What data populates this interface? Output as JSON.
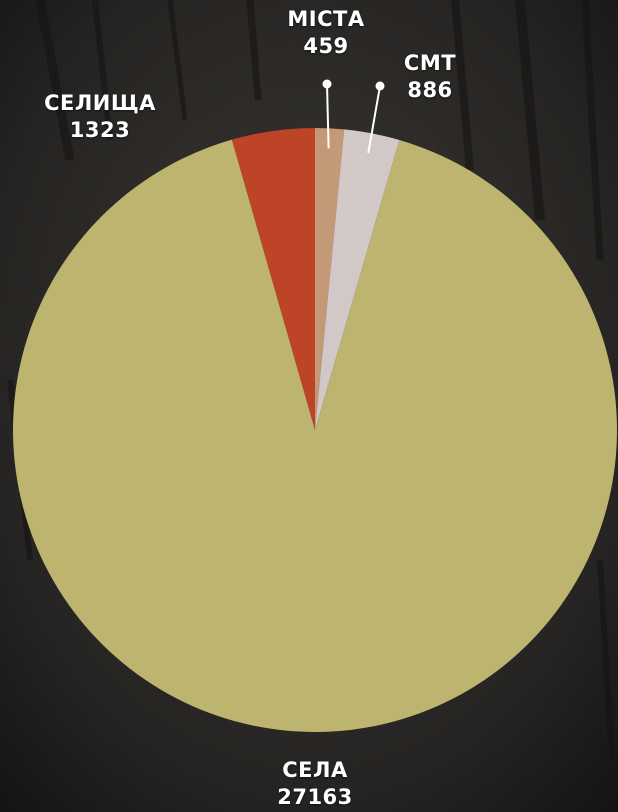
{
  "chart_data": {
    "type": "pie",
    "slices": [
      {
        "label": "МІСТА",
        "value": 459,
        "color": "#c49a76"
      },
      {
        "label": "СМТ",
        "value": 886,
        "color": "#d2c8c8"
      },
      {
        "label": "СЕЛА",
        "value": 27163,
        "color": "#bcb46f"
      },
      {
        "label": "СЕЛИЩА",
        "value": 1323,
        "color": "#bd4426"
      }
    ],
    "start": "top",
    "direction": "clockwise",
    "legend": "none",
    "label_color": "#ffffff"
  }
}
